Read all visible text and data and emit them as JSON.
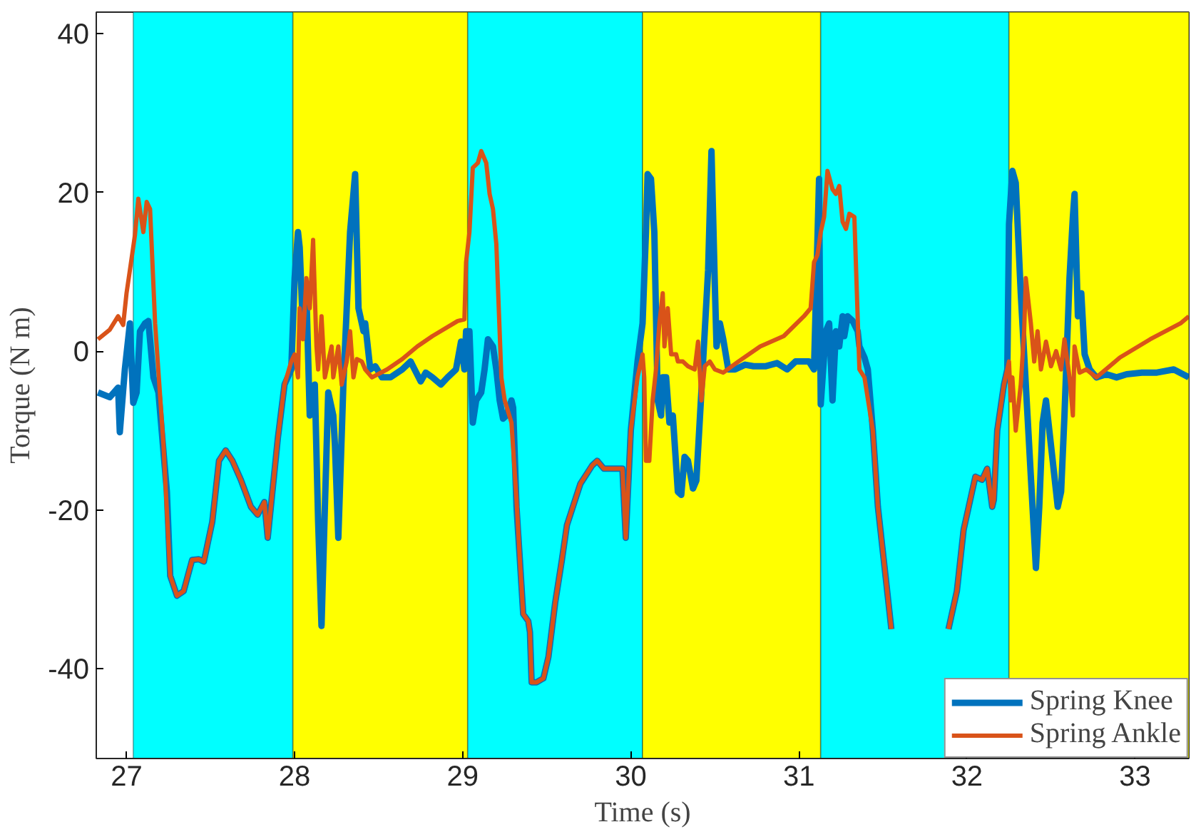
{
  "chart_data": {
    "type": "line",
    "xlabel": "Time (s)",
    "ylabel": "Torque (N m)",
    "xlim": [
      26.82,
      33.32
    ],
    "ylim": [
      -51.3,
      42.7
    ],
    "xticks": [
      27,
      28,
      29,
      30,
      31,
      32,
      33
    ],
    "yticks": [
      -40,
      -20,
      0,
      20,
      40
    ],
    "grid": false,
    "legend": "bottom right",
    "line_style": "solid",
    "marker": "none",
    "bands": [
      {
        "axis": "x",
        "from": 27.04,
        "to": 27.99,
        "color": "#00ffff"
      },
      {
        "axis": "x",
        "from": 27.99,
        "to": 29.03,
        "color": "#ffff00"
      },
      {
        "axis": "x",
        "from": 29.03,
        "to": 30.07,
        "color": "#00ffff"
      },
      {
        "axis": "x",
        "from": 30.07,
        "to": 31.13,
        "color": "#ffff00"
      },
      {
        "axis": "x",
        "from": 31.13,
        "to": 32.25,
        "color": "#00ffff"
      },
      {
        "axis": "x",
        "from": 32.25,
        "to": 33.32,
        "color": "#ffff00"
      }
    ],
    "series": [
      {
        "name": "Spring Knee",
        "color": "#0072bd",
        "x": [
          26.83,
          26.9,
          26.95,
          26.96,
          26.99,
          27.02,
          27.04,
          27.06,
          27.08,
          27.11,
          27.13,
          27.16,
          27.19,
          27.24,
          27.26,
          27.3,
          27.34,
          27.39,
          27.43,
          27.46,
          27.51,
          27.55,
          27.59,
          27.63,
          27.68,
          27.74,
          27.78,
          27.82,
          27.84,
          27.9,
          27.94,
          27.98,
          28.0,
          28.02,
          28.03,
          28.05,
          28.07,
          28.09,
          28.12,
          28.14,
          28.16,
          28.18,
          28.2,
          28.23,
          28.24,
          28.26,
          28.29,
          28.31,
          28.33,
          28.36,
          28.38,
          28.41,
          28.42,
          28.45,
          28.48,
          28.52,
          28.57,
          28.64,
          28.69,
          28.75,
          28.78,
          28.82,
          28.87,
          28.91,
          28.96,
          28.99,
          29.01,
          29.02,
          29.04,
          29.06,
          29.08,
          29.11,
          29.13,
          29.15,
          29.18,
          29.2,
          29.22,
          29.24,
          29.26,
          29.29,
          29.3,
          29.32,
          29.34,
          29.36,
          29.39,
          29.4,
          29.41,
          29.44,
          29.48,
          29.51,
          29.55,
          29.59,
          29.62,
          29.7,
          29.77,
          29.8,
          29.84,
          29.89,
          29.95,
          29.97,
          30.0,
          30.04,
          30.07,
          30.09,
          30.1,
          30.12,
          30.14,
          30.16,
          30.18,
          30.19,
          30.21,
          30.23,
          30.25,
          30.28,
          30.3,
          30.32,
          30.34,
          30.37,
          30.39,
          30.43,
          30.46,
          30.48,
          30.5,
          30.51,
          30.53,
          30.55,
          30.58,
          30.62,
          30.68,
          30.73,
          30.8,
          30.87,
          30.93,
          30.98,
          31.06,
          31.09,
          31.12,
          31.13,
          31.16,
          31.18,
          31.2,
          31.22,
          31.24,
          31.26,
          31.27,
          31.29,
          31.32,
          31.35,
          31.36,
          31.39,
          31.41,
          31.44,
          31.47,
          31.52,
          31.55,
          31.73,
          31.89,
          31.94,
          31.98,
          32.03,
          32.05,
          32.09,
          32.12,
          32.15,
          32.16,
          32.18,
          32.22,
          32.24,
          32.25,
          32.27,
          32.29,
          32.32,
          32.34,
          32.36,
          32.38,
          32.41,
          32.43,
          32.45,
          32.47,
          32.51,
          32.54,
          32.56,
          32.58,
          32.61,
          32.63,
          32.64,
          32.66,
          32.68,
          32.7,
          32.73,
          32.77,
          32.83,
          32.89,
          32.95,
          33.04,
          33.13,
          33.23,
          33.32
        ],
        "values": [
          -5.2,
          -5.8,
          -4.6,
          -10.2,
          -2.3,
          3.5,
          -6.5,
          -5.2,
          2.5,
          3.5,
          3.8,
          -3.3,
          -5.2,
          -17.7,
          -28.3,
          -30.8,
          -30.2,
          -26.3,
          -26.2,
          -26.5,
          -21.5,
          -13.8,
          -12.5,
          -13.8,
          -16.2,
          -19.6,
          -20.6,
          -19.0,
          -23.5,
          -11.0,
          -4.2,
          -2.3,
          9.2,
          15.0,
          13.1,
          2.5,
          7.3,
          -8.1,
          -4.2,
          -21.5,
          -34.6,
          -19.6,
          -5.2,
          -8.1,
          -11.9,
          -23.5,
          -4.2,
          5.4,
          15.0,
          22.3,
          5.4,
          2.5,
          3.5,
          -2.3,
          -1.9,
          -3.3,
          -3.3,
          -2.3,
          -1.3,
          -3.8,
          -2.7,
          -3.3,
          -4.2,
          -3.3,
          -2.3,
          1.2,
          -2.3,
          2.5,
          2.5,
          -9.0,
          -6.2,
          -5.2,
          -2.3,
          1.5,
          0.6,
          -2.3,
          -6.2,
          -8.5,
          -8.1,
          -6.2,
          -7.1,
          -19.6,
          -26.3,
          -33.1,
          -34.0,
          -35.4,
          -41.7,
          -41.7,
          -41.2,
          -38.5,
          -31.7,
          -26.3,
          -21.9,
          -16.7,
          -14.4,
          -13.8,
          -14.8,
          -14.8,
          -14.8,
          -23.5,
          -10.0,
          -1.3,
          3.5,
          15.0,
          22.3,
          21.7,
          15.0,
          -6.2,
          -8.1,
          -3.3,
          -3.3,
          -9.0,
          -8.1,
          -17.7,
          -18.1,
          -13.3,
          -13.8,
          -17.3,
          -16.3,
          -1.3,
          10.2,
          25.2,
          8.3,
          0.6,
          3.5,
          1.5,
          -2.3,
          -2.3,
          -1.7,
          -1.9,
          -1.9,
          -1.5,
          -2.3,
          -1.3,
          -1.3,
          -2.3,
          21.7,
          -6.7,
          2.5,
          3.5,
          -6.2,
          2.5,
          0.6,
          4.4,
          1.9,
          4.4,
          3.8,
          2.5,
          0.6,
          -0.8,
          -2.3,
          -10.0,
          -19.6,
          -29.2,
          -35.0,
          null,
          -35.0,
          -30.2,
          -22.5,
          -17.7,
          -15.8,
          -16.2,
          -14.8,
          -19.6,
          -18.7,
          -10.0,
          -4.2,
          -2.3,
          16.0,
          22.7,
          21.2,
          7.3,
          -0.4,
          -8.1,
          -15.8,
          -27.3,
          -19.6,
          -9.0,
          -6.2,
          -13.8,
          -19.6,
          -17.7,
          -8.1,
          9.2,
          16.9,
          19.8,
          4.4,
          7.3,
          -0.4,
          -2.3,
          -3.3,
          -2.9,
          -3.3,
          -2.9,
          -2.7,
          -2.7,
          -2.3,
          -3.3
        ]
      },
      {
        "name": "Spring Ankle",
        "color": "#d95319",
        "x": [
          26.83,
          26.9,
          26.95,
          26.98,
          27.0,
          27.02,
          27.05,
          27.07,
          27.1,
          27.12,
          27.14,
          27.17,
          27.22,
          27.26,
          27.3,
          27.34,
          27.39,
          27.43,
          27.46,
          27.51,
          27.55,
          27.59,
          27.63,
          27.68,
          27.74,
          27.78,
          27.82,
          27.84,
          27.9,
          27.94,
          27.98,
          28.0,
          28.02,
          28.03,
          28.05,
          28.07,
          28.09,
          28.11,
          28.13,
          28.14,
          28.16,
          28.18,
          28.2,
          28.22,
          28.23,
          28.26,
          28.28,
          28.31,
          28.33,
          28.35,
          28.37,
          28.4,
          28.42,
          28.46,
          28.55,
          28.64,
          28.73,
          28.82,
          28.97,
          29.01,
          29.02,
          29.04,
          29.06,
          29.09,
          29.11,
          29.14,
          29.16,
          29.18,
          29.2,
          29.23,
          29.25,
          29.29,
          29.32,
          29.34,
          29.36,
          29.39,
          29.4,
          29.41,
          29.44,
          29.48,
          29.51,
          29.55,
          29.59,
          29.62,
          29.7,
          29.77,
          29.8,
          29.84,
          29.89,
          29.95,
          29.97,
          30.0,
          30.04,
          30.07,
          30.08,
          30.09,
          30.11,
          30.13,
          30.15,
          30.17,
          30.19,
          30.2,
          30.22,
          30.24,
          30.27,
          30.28,
          30.31,
          30.34,
          30.38,
          30.4,
          30.42,
          30.44,
          30.47,
          30.5,
          30.55,
          30.64,
          30.77,
          30.91,
          31.03,
          31.07,
          31.09,
          31.11,
          31.13,
          31.15,
          31.17,
          31.2,
          31.22,
          31.24,
          31.26,
          31.28,
          31.3,
          31.33,
          31.36,
          31.39,
          31.44,
          31.47,
          31.52,
          31.55,
          31.73,
          31.89,
          31.94,
          31.98,
          32.03,
          32.05,
          32.09,
          32.12,
          32.15,
          32.16,
          32.18,
          32.22,
          32.25,
          32.26,
          32.27,
          32.29,
          32.32,
          32.34,
          32.35,
          32.38,
          32.4,
          32.42,
          32.44,
          32.47,
          32.5,
          32.53,
          32.56,
          32.58,
          32.61,
          32.63,
          32.64,
          32.67,
          32.71,
          32.77,
          32.91,
          33.09,
          33.27,
          33.32
        ],
        "values": [
          1.5,
          2.7,
          4.4,
          3.3,
          7.3,
          10.2,
          14.6,
          19.2,
          15.0,
          18.8,
          17.9,
          3.5,
          -11.9,
          -28.3,
          -30.8,
          -30.2,
          -26.3,
          -26.2,
          -26.5,
          -21.5,
          -13.8,
          -12.5,
          -13.8,
          -16.2,
          -19.6,
          -20.6,
          -19.0,
          -23.5,
          -11.0,
          -4.2,
          -1.3,
          -0.4,
          -3.3,
          5.4,
          1.5,
          9.2,
          5.4,
          14.0,
          0.6,
          -2.3,
          4.4,
          -3.3,
          -1.3,
          0.6,
          -3.3,
          0.6,
          -4.2,
          -1.3,
          2.5,
          -3.3,
          -1.0,
          -1.3,
          -2.3,
          -3.3,
          -2.3,
          -1.0,
          0.6,
          1.9,
          3.8,
          4.0,
          11.2,
          15.0,
          23.1,
          23.7,
          25.2,
          23.7,
          19.8,
          17.9,
          13.5,
          -3.3,
          -6.2,
          -9.0,
          -18.7,
          -26.3,
          -33.1,
          -34.0,
          -35.4,
          -41.7,
          -41.7,
          -41.2,
          -38.5,
          -31.7,
          -26.3,
          -21.9,
          -16.7,
          -14.4,
          -13.8,
          -14.8,
          -14.8,
          -14.8,
          -23.5,
          -10.0,
          -3.3,
          -0.4,
          -3.3,
          -13.8,
          -13.8,
          -6.2,
          -2.3,
          3.5,
          7.3,
          0.6,
          5.4,
          -0.4,
          -0.4,
          -1.3,
          -1.3,
          -1.9,
          -2.3,
          1.2,
          -6.2,
          -1.9,
          -1.3,
          -2.3,
          -2.7,
          -1.3,
          0.6,
          1.9,
          4.4,
          5.4,
          11.2,
          12.1,
          15.0,
          16.9,
          22.7,
          20.4,
          19.8,
          20.8,
          16.3,
          15.4,
          17.3,
          16.9,
          -2.3,
          -3.3,
          -10.0,
          -19.6,
          -29.2,
          -35.0,
          null,
          -35.0,
          -30.2,
          -22.5,
          -17.7,
          -15.8,
          -16.2,
          -14.8,
          -19.6,
          -18.7,
          -10.0,
          -4.2,
          -1.3,
          -6.2,
          -3.3,
          -10.0,
          -4.2,
          2.5,
          9.2,
          3.5,
          -1.3,
          2.5,
          -2.3,
          1.2,
          -1.9,
          0.0,
          -2.3,
          1.5,
          -3.3,
          -8.1,
          0.6,
          -2.7,
          -2.3,
          -3.3,
          -0.8,
          1.5,
          3.5,
          4.4
        ]
      }
    ]
  }
}
